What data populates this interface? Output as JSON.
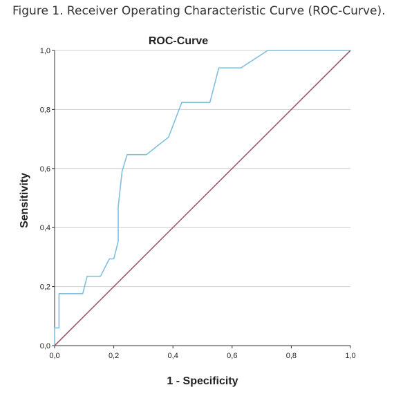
{
  "caption": "Figure 1. Receiver Operating Characteristic Curve (ROC-Curve).",
  "chart_data": {
    "type": "line",
    "title": "ROC-Curve",
    "xlabel": "1 - Specificity",
    "ylabel": "Sensitivity",
    "xlim": [
      0,
      1
    ],
    "ylim": [
      0,
      1
    ],
    "x_ticks": [
      "0,0",
      "0,2",
      "0,4",
      "0,6",
      "0,8",
      "1,0"
    ],
    "y_ticks": [
      "0,0",
      "0,2",
      "0,4",
      "0,6",
      "0,8",
      "1,0"
    ],
    "grid": "horizontal",
    "series": [
      {
        "color": "#7fbfdf",
        "points": [
          [
            0.0,
            0.0
          ],
          [
            0.0,
            0.06
          ],
          [
            0.015,
            0.06
          ],
          [
            0.015,
            0.176
          ],
          [
            0.095,
            0.176
          ],
          [
            0.11,
            0.235
          ],
          [
            0.155,
            0.235
          ],
          [
            0.185,
            0.294
          ],
          [
            0.2,
            0.294
          ],
          [
            0.215,
            0.353
          ],
          [
            0.215,
            0.47
          ],
          [
            0.228,
            0.59
          ],
          [
            0.245,
            0.647
          ],
          [
            0.31,
            0.647
          ],
          [
            0.385,
            0.706
          ],
          [
            0.43,
            0.824
          ],
          [
            0.525,
            0.824
          ],
          [
            0.555,
            0.941
          ],
          [
            0.63,
            0.941
          ],
          [
            0.72,
            1.0
          ],
          [
            1.0,
            1.0
          ]
        ]
      },
      {
        "color": "#9a5a6e",
        "points": [
          [
            0.0,
            0.0
          ],
          [
            1.0,
            1.0
          ]
        ]
      }
    ]
  }
}
